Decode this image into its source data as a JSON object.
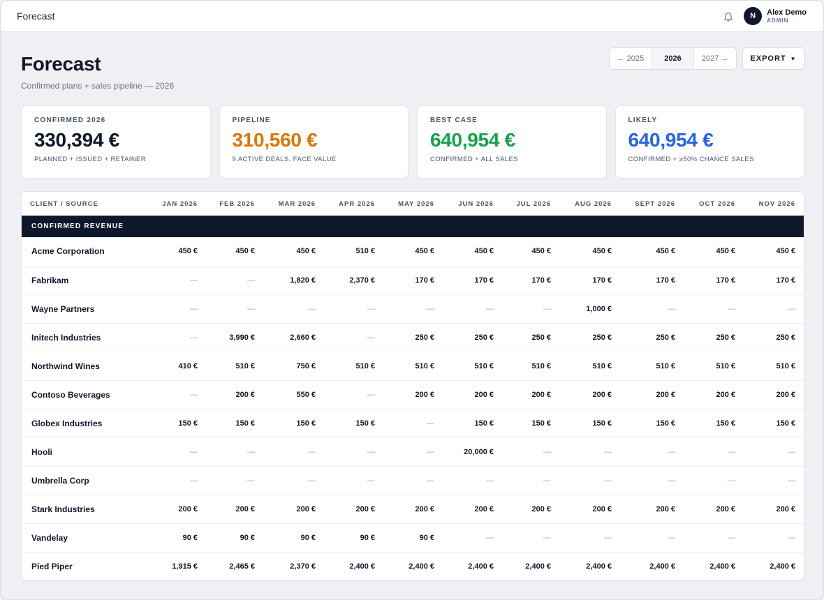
{
  "topbar": {
    "title": "Forecast",
    "user": {
      "initial": "N",
      "name": "Alex Demo",
      "role": "ADMIN"
    }
  },
  "page": {
    "title": "Forecast",
    "subtitle": "Confirmed plans + sales pipeline — 2026",
    "year_switch": {
      "prev": "← 2025",
      "current": "2026",
      "next": "2027 →"
    },
    "export_label": "EXPORT",
    "export_caret": "▼"
  },
  "cards": [
    {
      "label": "CONFIRMED 2026",
      "value": "330,394 €",
      "sub": "PLANNED + ISSUED + RETAINER",
      "color": "#0f172a"
    },
    {
      "label": "PIPELINE",
      "value": "310,560 €",
      "sub": "9 ACTIVE DEALS, FACE VALUE",
      "color": "#d97706"
    },
    {
      "label": "BEST CASE",
      "value": "640,954 €",
      "sub": "CONFIRMED + ALL SALES",
      "color": "#16a34a"
    },
    {
      "label": "LIKELY",
      "value": "640,954 €",
      "sub": "CONFIRMED + ≥50% CHANCE SALES",
      "color": "#2563eb"
    }
  ],
  "table": {
    "client_header": "CLIENT / SOURCE",
    "months": [
      "JAN 2026",
      "FEB 2026",
      "MAR 2026",
      "APR 2026",
      "MAY 2026",
      "JUN 2026",
      "JUL 2026",
      "AUG 2026",
      "SEPT 2026",
      "OCT 2026",
      "NOV 2026"
    ],
    "section_label": "CONFIRMED REVENUE",
    "rows": [
      {
        "client": "Acme Corporation",
        "values": [
          "450 €",
          "450 €",
          "450 €",
          "510 €",
          "450 €",
          "450 €",
          "450 €",
          "450 €",
          "450 €",
          "450 €",
          "450 €"
        ]
      },
      {
        "client": "Fabrikam",
        "values": [
          "—",
          "—",
          "1,820 €",
          "2,370 €",
          "170 €",
          "170 €",
          "170 €",
          "170 €",
          "170 €",
          "170 €",
          "170 €"
        ]
      },
      {
        "client": "Wayne Partners",
        "values": [
          "—",
          "—",
          "—",
          "—",
          "—",
          "—",
          "—",
          "1,000 €",
          "—",
          "—",
          "—"
        ]
      },
      {
        "client": "Initech Industries",
        "values": [
          "—",
          "3,990 €",
          "2,660 €",
          "—",
          "250 €",
          "250 €",
          "250 €",
          "250 €",
          "250 €",
          "250 €",
          "250 €"
        ]
      },
      {
        "client": "Northwind Wines",
        "values": [
          "410 €",
          "510 €",
          "750 €",
          "510 €",
          "510 €",
          "510 €",
          "510 €",
          "510 €",
          "510 €",
          "510 €",
          "510 €"
        ]
      },
      {
        "client": "Contoso Beverages",
        "values": [
          "—",
          "200 €",
          "550 €",
          "—",
          "200 €",
          "200 €",
          "200 €",
          "200 €",
          "200 €",
          "200 €",
          "200 €"
        ]
      },
      {
        "client": "Globex Industries",
        "values": [
          "150 €",
          "150 €",
          "150 €",
          "150 €",
          "—",
          "150 €",
          "150 €",
          "150 €",
          "150 €",
          "150 €",
          "150 €"
        ]
      },
      {
        "client": "Hooli",
        "values": [
          "—",
          "—",
          "—",
          "—",
          "—",
          "20,000 €",
          "—",
          "—",
          "—",
          "—",
          "—"
        ]
      },
      {
        "client": "Umbrella Corp",
        "values": [
          "—",
          "—",
          "—",
          "—",
          "—",
          "—",
          "—",
          "—",
          "—",
          "—",
          "—"
        ]
      },
      {
        "client": "Stark Industries",
        "values": [
          "200 €",
          "200 €",
          "200 €",
          "200 €",
          "200 €",
          "200 €",
          "200 €",
          "200 €",
          "200 €",
          "200 €",
          "200 €"
        ]
      },
      {
        "client": "Vandelay",
        "values": [
          "90 €",
          "90 €",
          "90 €",
          "90 €",
          "90 €",
          "—",
          "—",
          "—",
          "—",
          "—",
          "—"
        ]
      },
      {
        "client": "Pied Piper",
        "values": [
          "1,915 €",
          "2,465 €",
          "2,370 €",
          "2,400 €",
          "2,400 €",
          "2,400 €",
          "2,400 €",
          "2,400 €",
          "2,400 €",
          "2,400 €",
          "2,400 €"
        ]
      }
    ]
  }
}
